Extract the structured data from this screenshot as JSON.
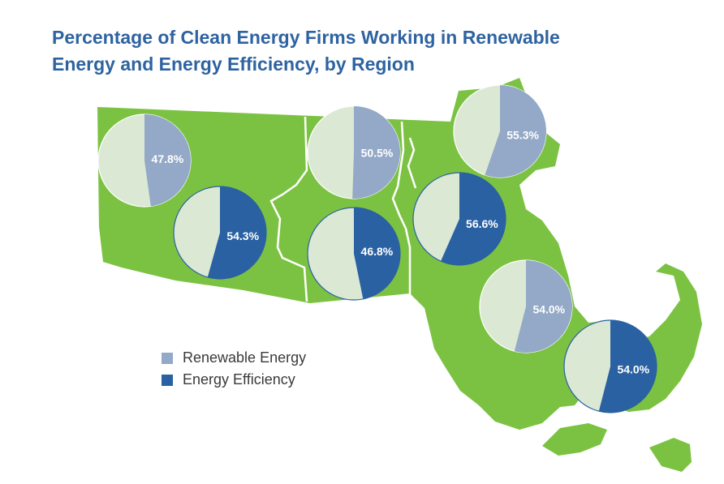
{
  "title": {
    "line1": "Percentage of Clean Energy Firms Working in Renewable",
    "line2": "Energy and Energy Efficiency, by Region"
  },
  "colors": {
    "land": "#7cc242",
    "border": "#ffffff",
    "pie_background": "#dbe8d4",
    "renewable": "#93a9c7",
    "efficiency": "#2a61a2",
    "title": "#2e63a1"
  },
  "legend": [
    {
      "key": "renewable",
      "label": "Renewable Energy",
      "color": "#93a9c7"
    },
    {
      "key": "efficiency",
      "label": "Energy Efficiency",
      "color": "#2a61a2"
    }
  ],
  "chart_data": {
    "type": "pie",
    "series": [
      {
        "category": "Renewable Energy",
        "value": 47.8,
        "label": "47.8%"
      },
      {
        "category": "Energy Efficiency",
        "value": 54.3,
        "label": "54.3%"
      },
      {
        "category": "Renewable Energy",
        "value": 50.5,
        "label": "50.5%"
      },
      {
        "category": "Energy Efficiency",
        "value": 46.8,
        "label": "46.8%"
      },
      {
        "category": "Renewable Energy",
        "value": 55.3,
        "label": "55.3%"
      },
      {
        "category": "Energy Efficiency",
        "value": 56.6,
        "label": "56.6%"
      },
      {
        "category": "Renewable Energy",
        "value": 54.0,
        "label": "54.0%"
      },
      {
        "category": "Energy Efficiency",
        "value": 54.0,
        "label": "54.0%"
      }
    ]
  }
}
